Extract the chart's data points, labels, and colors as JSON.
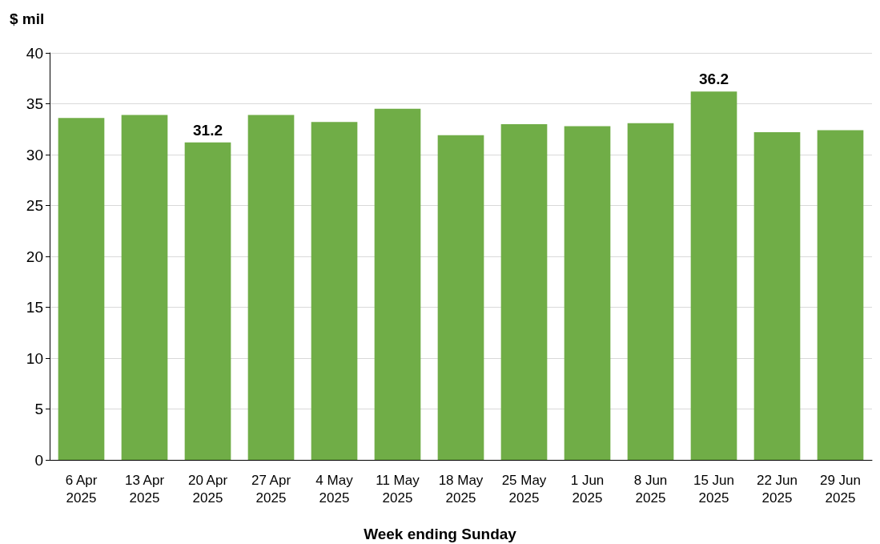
{
  "chart_data": {
    "type": "bar",
    "ylabel": "$ mil",
    "xlabel": "Week ending Sunday",
    "categories": [
      "6 Apr 2025",
      "13 Apr 2025",
      "20 Apr 2025",
      "27 Apr 2025",
      "4 May 2025",
      "11 May 2025",
      "18 May 2025",
      "25 May 2025",
      "1 Jun 2025",
      "8 Jun 2025",
      "15 Jun 2025",
      "22 Jun 2025",
      "29 Jun 2025"
    ],
    "values": [
      33.6,
      33.9,
      31.2,
      33.9,
      33.2,
      34.5,
      31.9,
      33.0,
      32.8,
      33.1,
      36.2,
      32.2,
      32.4
    ],
    "value_labels": [
      null,
      null,
      "31.2",
      null,
      null,
      null,
      null,
      null,
      null,
      null,
      "36.2",
      null,
      null
    ],
    "color": "#70ad47",
    "ylim": [
      0,
      40
    ],
    "yticks": [
      0,
      5,
      10,
      15,
      20,
      25,
      30,
      35,
      40
    ],
    "grid": "y"
  }
}
